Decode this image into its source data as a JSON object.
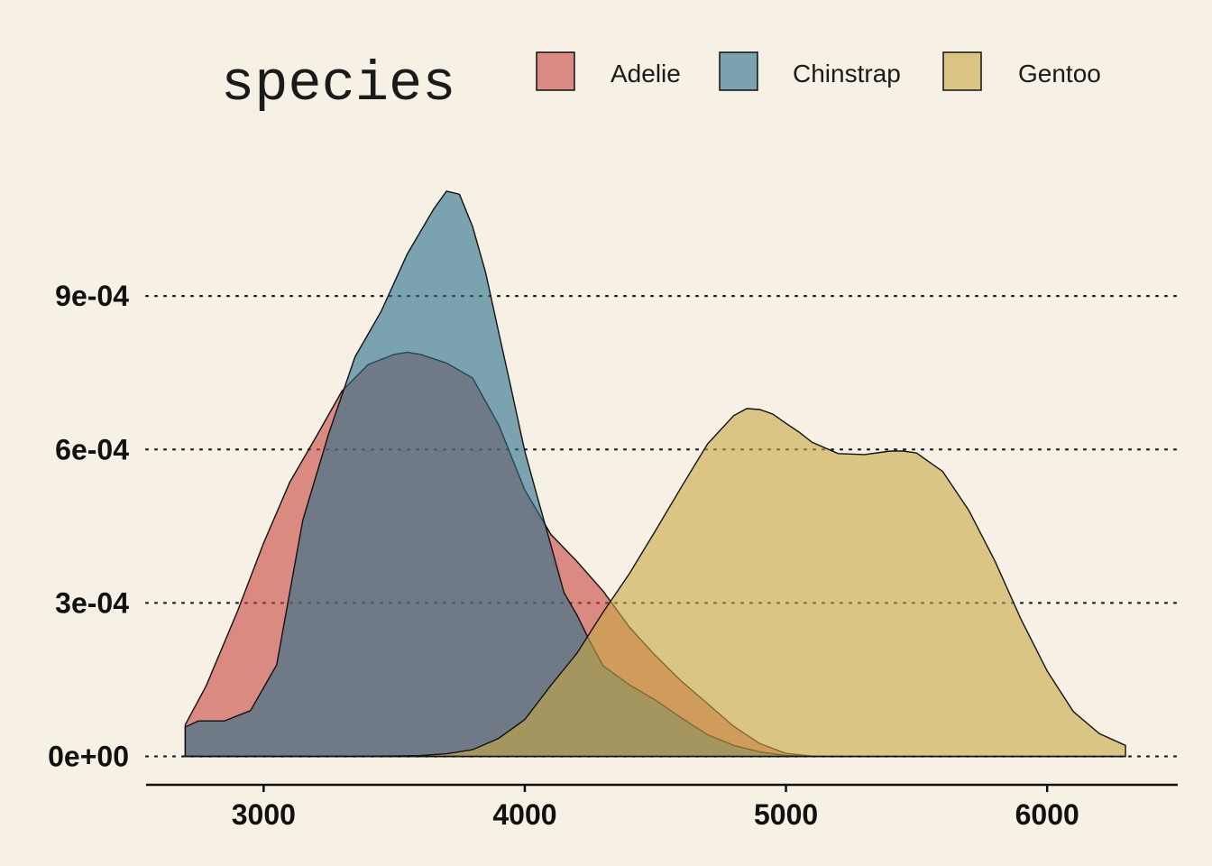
{
  "chart_data": {
    "type": "density",
    "title": "",
    "xlabel": "",
    "ylabel": "",
    "legend": {
      "title": "species",
      "position": "top",
      "entries": [
        {
          "name": "Adelie",
          "color": "#c8463f"
        },
        {
          "name": "Chinstrap",
          "color": "#2a6f8c"
        },
        {
          "name": "Gentoo",
          "color": "#c8a844"
        }
      ]
    },
    "xlim": [
      2550,
      6500
    ],
    "ylim": [
      -5.55e-05,
      0.00117
    ],
    "x_ticks": [
      3000,
      4000,
      5000,
      6000
    ],
    "x_tick_labels": [
      "3000",
      "4000",
      "5000",
      "6000"
    ],
    "y_ticks": [
      0,
      0.0003,
      0.0006,
      0.0009
    ],
    "y_tick_labels": [
      "0e+00",
      "3e-04",
      "6e-04",
      "9e-04"
    ],
    "grid": "horizontal-dotted",
    "series": [
      {
        "name": "Adelie",
        "color": "#c8463f",
        "points": [
          [
            2700,
            6.19e-05
          ],
          [
            2780,
            0.000138
          ],
          [
            2900,
            0.000284
          ],
          [
            3000,
            0.000417
          ],
          [
            3100,
            0.000536
          ],
          [
            3200,
            0.000624
          ],
          [
            3300,
            0.000714
          ],
          [
            3400,
            0.000766
          ],
          [
            3500,
            0.000786
          ],
          [
            3550,
            0.00079
          ],
          [
            3600,
            0.000786
          ],
          [
            3700,
            0.000769
          ],
          [
            3800,
            0.00074
          ],
          [
            3900,
            0.000648
          ],
          [
            4000,
            0.000521
          ],
          [
            4100,
            0.000434
          ],
          [
            4200,
            0.000381
          ],
          [
            4300,
            0.000323
          ],
          [
            4400,
            0.000253
          ],
          [
            4500,
            0.000197
          ],
          [
            4600,
            0.000147
          ],
          [
            4700,
            0.000103
          ],
          [
            4800,
            5.89e-05
          ],
          [
            4900,
            2.51e-05
          ],
          [
            5000,
            5.9e-06
          ],
          [
            5100,
            6e-07
          ],
          [
            5200,
            0.0
          ],
          [
            6300,
            0.0
          ]
        ]
      },
      {
        "name": "Chinstrap",
        "color": "#2a6f8c",
        "points": [
          [
            2700,
            5.74e-05
          ],
          [
            2750,
            6.93e-05
          ],
          [
            2850,
            6.93e-05
          ],
          [
            2950,
            8.96e-05
          ],
          [
            3050,
            0.000179
          ],
          [
            3150,
            0.000462
          ],
          [
            3250,
            0.000632
          ],
          [
            3350,
            0.000781
          ],
          [
            3450,
            0.00087
          ],
          [
            3550,
            0.000982
          ],
          [
            3650,
            0.001069
          ],
          [
            3700,
            0.001105
          ],
          [
            3750,
            0.001099
          ],
          [
            3800,
            0.001036
          ],
          [
            3850,
            0.000946
          ],
          [
            3900,
            0.000829
          ],
          [
            3950,
            0.000714
          ],
          [
            4000,
            0.000597
          ],
          [
            4050,
            0.000504
          ],
          [
            4100,
            0.000413
          ],
          [
            4150,
            0.00032
          ],
          [
            4200,
            0.000276
          ],
          [
            4250,
            0.000224
          ],
          [
            4300,
            0.000177
          ],
          [
            4400,
            0.00014
          ],
          [
            4500,
            0.00011
          ],
          [
            4600,
            7.52e-05
          ],
          [
            4700,
            4.24e-05
          ],
          [
            4800,
            2.16e-05
          ],
          [
            4900,
            8.6e-06
          ],
          [
            5000,
            1.7e-06
          ],
          [
            5100,
            1e-07
          ],
          [
            5200,
            0.0
          ],
          [
            6300,
            0.0
          ]
        ]
      },
      {
        "name": "Gentoo",
        "color": "#c8a844",
        "points": [
          [
            2700,
            0.0
          ],
          [
            3400,
            3e-07
          ],
          [
            3600,
            1.7e-06
          ],
          [
            3700,
            5.2e-06
          ],
          [
            3800,
            1.31e-05
          ],
          [
            3900,
            3.53e-05
          ],
          [
            4000,
            7.19e-05
          ],
          [
            4100,
            0.000139
          ],
          [
            4200,
            0.000202
          ],
          [
            4300,
            0.000282
          ],
          [
            4400,
            0.000357
          ],
          [
            4500,
            0.000441
          ],
          [
            4600,
            0.000527
          ],
          [
            4700,
            0.000611
          ],
          [
            4800,
            0.000666
          ],
          [
            4850,
            0.00068
          ],
          [
            4900,
            0.000678
          ],
          [
            4950,
            0.000669
          ],
          [
            5000,
            0.000651
          ],
          [
            5050,
            0.000634
          ],
          [
            5100,
            0.000614
          ],
          [
            5200,
            0.000592
          ],
          [
            5300,
            0.00059
          ],
          [
            5400,
            0.000597
          ],
          [
            5450,
            0.000597
          ],
          [
            5500,
            0.000593
          ],
          [
            5600,
            0.000557
          ],
          [
            5700,
            0.000481
          ],
          [
            5800,
            0.000382
          ],
          [
            5900,
            0.000268
          ],
          [
            6000,
            0.000167
          ],
          [
            6100,
            8.77e-05
          ],
          [
            6200,
            4.44e-05
          ],
          [
            6300,
            2.16e-05
          ],
          [
            6300,
            0.0
          ]
        ]
      }
    ]
  }
}
